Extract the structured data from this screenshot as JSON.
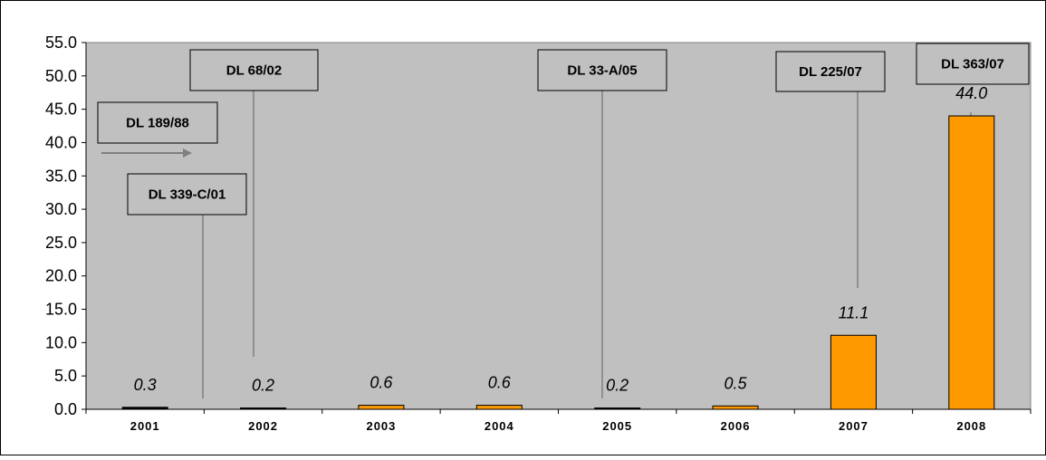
{
  "chart_data": {
    "type": "bar",
    "categories": [
      "2001",
      "2002",
      "2003",
      "2004",
      "2005",
      "2006",
      "2007",
      "2008"
    ],
    "values": [
      0.3,
      0.2,
      0.6,
      0.6,
      0.2,
      0.5,
      11.1,
      44.0
    ],
    "data_labels": [
      "0.3",
      "0.2",
      "0.6",
      "0.6",
      "0.2",
      "0.5",
      "11.1",
      "44.0"
    ],
    "bar_colors": [
      "#000000",
      "#000000",
      "#FF9900",
      "#FF9900",
      "#000000",
      "#FF9900",
      "#FF9900",
      "#FF9900"
    ],
    "yticks": [
      "0.0",
      "5.0",
      "10.0",
      "15.0",
      "20.0",
      "25.0",
      "30.0",
      "35.0",
      "40.0",
      "45.0",
      "50.0",
      "55.0"
    ],
    "ylim": [
      0,
      55
    ],
    "grid": false,
    "plot_background": "#C0C0C0",
    "annotations": [
      {
        "label": "DL 189/88",
        "arrow": "right"
      },
      {
        "label": "DL 339-C/01",
        "category": "2001"
      },
      {
        "label": "DL 68/02",
        "category": "2002"
      },
      {
        "label": "DL 33-A/05",
        "category": "2005"
      },
      {
        "label": "DL 225/07",
        "category": "2007"
      },
      {
        "label": "DL 363/07",
        "category": "2008"
      }
    ]
  }
}
